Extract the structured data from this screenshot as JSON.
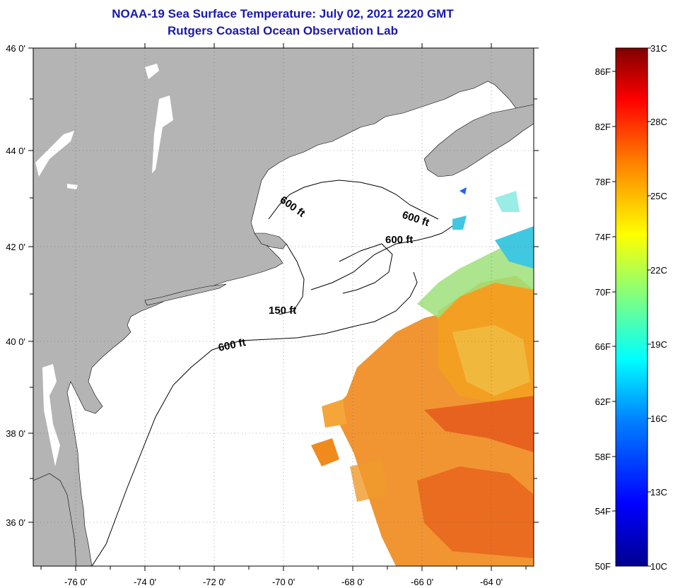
{
  "title_line1": "NOAA-19 Sea Surface Temperature:  July 02, 2021 2220 GMT",
  "title_line2": "Rutgers Coastal Ocean Observation Lab",
  "lat_labels": [
    "46 0'",
    "44 0'",
    "42 0'",
    "40 0'",
    "38 0'",
    "36 0'"
  ],
  "lon_labels": [
    "-76 0'",
    "-74 0'",
    "-72 0'",
    "-70 0'",
    "-68 0'",
    "-66 0'",
    "-64 0'"
  ],
  "contour_labels": [
    "600 ft",
    "600 ft",
    "600 ft",
    "150 ft",
    "600 ft"
  ],
  "colorbar": {
    "fahrenheit": [
      "86F",
      "82F",
      "78F",
      "74F",
      "70F",
      "66F",
      "62F",
      "58F",
      "54F",
      "50F"
    ],
    "celsius": [
      "31C",
      "28C",
      "25C",
      "22C",
      "19C",
      "16C",
      "13C",
      "10C"
    ]
  },
  "colors": {
    "land": "#b4b4b4",
    "title": "#1a1aa8",
    "colorbar_stops": [
      "#00008f",
      "#0000ff",
      "#0080ff",
      "#00ffff",
      "#80ff80",
      "#ffff00",
      "#ff8000",
      "#ff0000",
      "#800000"
    ]
  }
}
